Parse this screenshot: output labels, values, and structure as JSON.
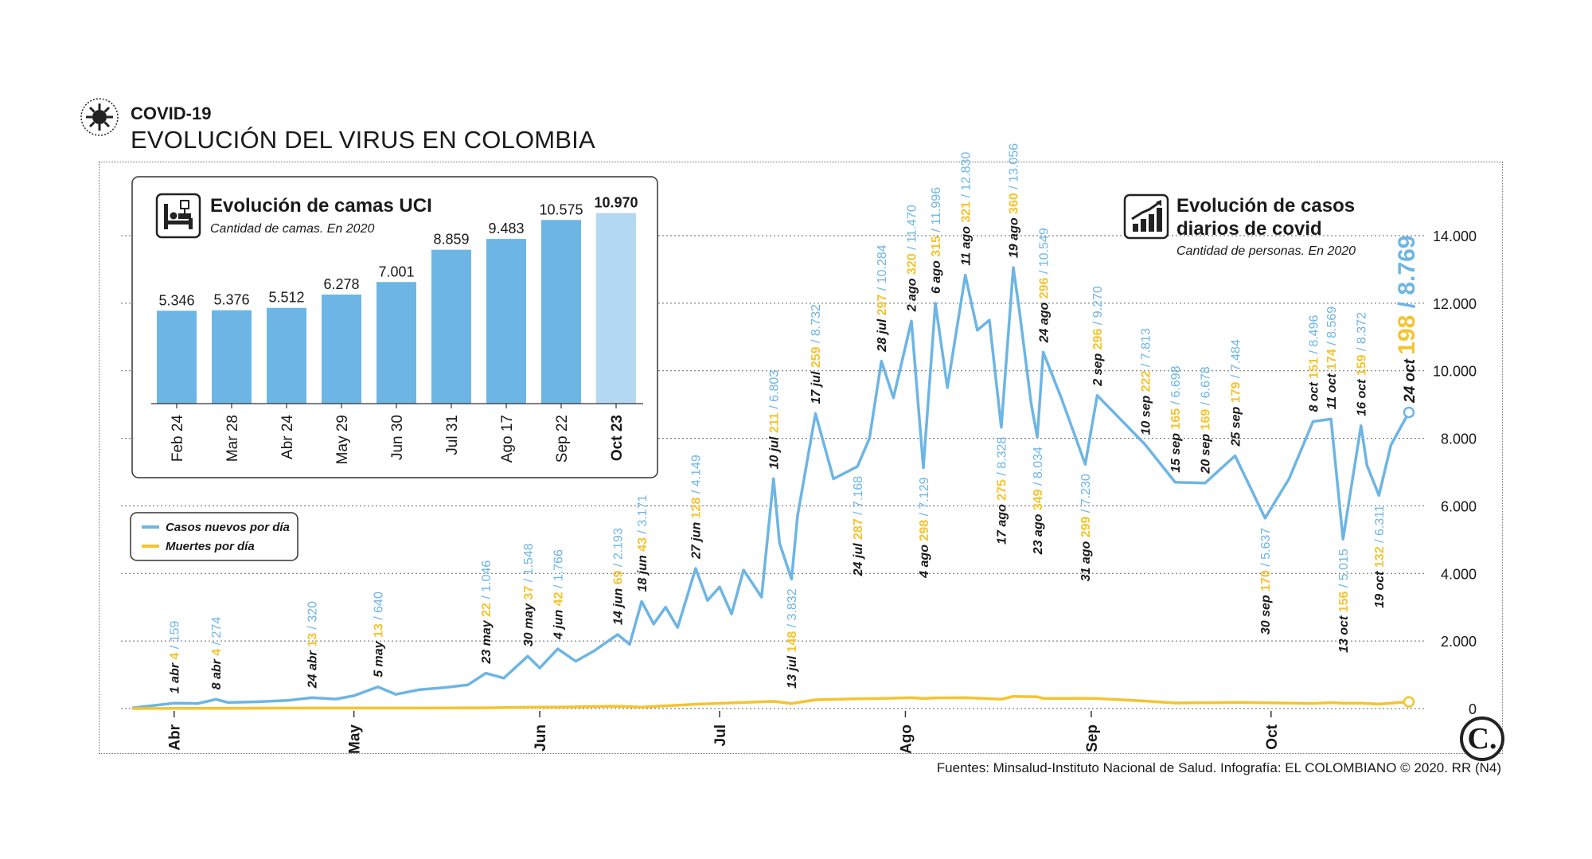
{
  "header": {
    "kicker": "COVID-19",
    "title": "EVOLUCIÓN DEL VIRUS EN COLOMBIA"
  },
  "sources": "Fuentes: Minsalud-Instituto Nacional de Salud. Infografía: EL COLOMBIANO © 2020. RR (N4)",
  "logo_text": "C.",
  "colors": {
    "cases": "#6db5e4",
    "deaths": "#f4c430",
    "bar": "#6db5e4",
    "bar_highlight": "#b3d8f2",
    "text": "#1a1a1a"
  },
  "chart_data": [
    {
      "type": "bar",
      "title": "Evolución de camas UCI",
      "subtitle": "Cantidad de camas. En 2020",
      "icon": "hospital-bed-icon",
      "categories": [
        "Feb 24",
        "Mar 28",
        "Abr 24",
        "May 29",
        "Jun 30",
        "Jul 31",
        "Ago 17",
        "Sep 22",
        "Oct 23"
      ],
      "values": [
        5346,
        5376,
        5512,
        6278,
        7001,
        8859,
        9483,
        10575,
        10970
      ],
      "value_labels": [
        "5.346",
        "5.376",
        "5.512",
        "6.278",
        "7.001",
        "8.859",
        "9.483",
        "10.575",
        "10.970"
      ],
      "highlight_index": 8
    },
    {
      "type": "line",
      "title": "Evolución de casos diarios de covid",
      "subtitle": "Cantidad de personas. En 2020",
      "icon": "chart-up-icon",
      "x_start": "2020-03-25",
      "x_end": "2020-10-24",
      "x_tick_labels": [
        {
          "date": "2020-04-01",
          "label": "Abr"
        },
        {
          "date": "2020-05-01",
          "label": "May"
        },
        {
          "date": "2020-06-01",
          "label": "Jun"
        },
        {
          "date": "2020-07-01",
          "label": "Jul"
        },
        {
          "date": "2020-08-01",
          "label": "Ago"
        },
        {
          "date": "2020-09-01",
          "label": "Sep"
        },
        {
          "date": "2020-10-01",
          "label": "Oct"
        }
      ],
      "ylim": [
        0,
        14000
      ],
      "y_ticks": [
        0,
        2000,
        4000,
        6000,
        8000,
        10000,
        12000,
        14000
      ],
      "y_tick_labels": [
        "0",
        "2.000",
        "4.000",
        "6.000",
        "8.000",
        "10.000",
        "12.000",
        "14.000"
      ],
      "grid": true,
      "legend_position": "left",
      "series": [
        {
          "name": "Casos nuevos por día",
          "points": [
            [
              "2020-03-25",
              20
            ],
            [
              "2020-04-01",
              159
            ],
            [
              "2020-04-05",
              150
            ],
            [
              "2020-04-08",
              274
            ],
            [
              "2020-04-10",
              180
            ],
            [
              "2020-04-15",
              200
            ],
            [
              "2020-04-20",
              240
            ],
            [
              "2020-04-24",
              320
            ],
            [
              "2020-04-28",
              280
            ],
            [
              "2020-05-01",
              380
            ],
            [
              "2020-05-05",
              640
            ],
            [
              "2020-05-08",
              420
            ],
            [
              "2020-05-12",
              560
            ],
            [
              "2020-05-16",
              620
            ],
            [
              "2020-05-20",
              700
            ],
            [
              "2020-05-23",
              1046
            ],
            [
              "2020-05-26",
              900
            ],
            [
              "2020-05-30",
              1548
            ],
            [
              "2020-06-01",
              1200
            ],
            [
              "2020-06-04",
              1766
            ],
            [
              "2020-06-07",
              1400
            ],
            [
              "2020-06-10",
              1700
            ],
            [
              "2020-06-14",
              2193
            ],
            [
              "2020-06-16",
              1900
            ],
            [
              "2020-06-18",
              3171
            ],
            [
              "2020-06-20",
              2500
            ],
            [
              "2020-06-22",
              3000
            ],
            [
              "2020-06-24",
              2400
            ],
            [
              "2020-06-27",
              4149
            ],
            [
              "2020-06-29",
              3200
            ],
            [
              "2020-07-01",
              3600
            ],
            [
              "2020-07-03",
              2800
            ],
            [
              "2020-07-05",
              4100
            ],
            [
              "2020-07-08",
              3300
            ],
            [
              "2020-07-10",
              6803
            ],
            [
              "2020-07-11",
              4900
            ],
            [
              "2020-07-13",
              3832
            ],
            [
              "2020-07-14",
              5700
            ],
            [
              "2020-07-17",
              8732
            ],
            [
              "2020-07-20",
              6800
            ],
            [
              "2020-07-24",
              7168
            ],
            [
              "2020-07-26",
              8000
            ],
            [
              "2020-07-28",
              10284
            ],
            [
              "2020-07-30",
              9200
            ],
            [
              "2020-08-02",
              11470
            ],
            [
              "2020-08-04",
              7129
            ],
            [
              "2020-08-06",
              11996
            ],
            [
              "2020-08-08",
              9500
            ],
            [
              "2020-08-11",
              12830
            ],
            [
              "2020-08-13",
              11200
            ],
            [
              "2020-08-15",
              11500
            ],
            [
              "2020-08-17",
              8328
            ],
            [
              "2020-08-19",
              13056
            ],
            [
              "2020-08-20",
              11800
            ],
            [
              "2020-08-22",
              9000
            ],
            [
              "2020-08-23",
              8034
            ],
            [
              "2020-08-24",
              10549
            ],
            [
              "2020-08-27",
              9200
            ],
            [
              "2020-08-31",
              7230
            ],
            [
              "2020-09-02",
              9270
            ],
            [
              "2020-09-10",
              7813
            ],
            [
              "2020-09-15",
              6698
            ],
            [
              "2020-09-20",
              6678
            ],
            [
              "2020-09-25",
              7484
            ],
            [
              "2020-09-30",
              5637
            ],
            [
              "2020-10-04",
              6800
            ],
            [
              "2020-10-08",
              8496
            ],
            [
              "2020-10-11",
              8569
            ],
            [
              "2020-10-13",
              5015
            ],
            [
              "2020-10-16",
              8372
            ],
            [
              "2020-10-17",
              7200
            ],
            [
              "2020-10-19",
              6311
            ],
            [
              "2020-10-21",
              7800
            ],
            [
              "2020-10-24",
              8769
            ]
          ]
        },
        {
          "name": "Muertes por día",
          "points": [
            [
              "2020-03-25",
              0
            ],
            [
              "2020-04-01",
              4
            ],
            [
              "2020-04-08",
              4
            ],
            [
              "2020-04-24",
              13
            ],
            [
              "2020-05-05",
              13
            ],
            [
              "2020-05-23",
              22
            ],
            [
              "2020-05-30",
              37
            ],
            [
              "2020-06-04",
              42
            ],
            [
              "2020-06-14",
              69
            ],
            [
              "2020-06-18",
              43
            ],
            [
              "2020-06-27",
              128
            ],
            [
              "2020-07-10",
              211
            ],
            [
              "2020-07-13",
              148
            ],
            [
              "2020-07-17",
              259
            ],
            [
              "2020-07-24",
              287
            ],
            [
              "2020-07-28",
              297
            ],
            [
              "2020-08-02",
              320
            ],
            [
              "2020-08-04",
              298
            ],
            [
              "2020-08-06",
              315
            ],
            [
              "2020-08-11",
              321
            ],
            [
              "2020-08-17",
              275
            ],
            [
              "2020-08-19",
              360
            ],
            [
              "2020-08-23",
              349
            ],
            [
              "2020-08-24",
              296
            ],
            [
              "2020-08-31",
              299
            ],
            [
              "2020-09-02",
              296
            ],
            [
              "2020-09-10",
              222
            ],
            [
              "2020-09-15",
              165
            ],
            [
              "2020-09-20",
              169
            ],
            [
              "2020-09-25",
              179
            ],
            [
              "2020-09-30",
              170
            ],
            [
              "2020-10-08",
              151
            ],
            [
              "2020-10-11",
              174
            ],
            [
              "2020-10-13",
              156
            ],
            [
              "2020-10-16",
              159
            ],
            [
              "2020-10-19",
              132
            ],
            [
              "2020-10-24",
              198
            ]
          ]
        }
      ],
      "annotations": [
        {
          "date": "2020-04-01",
          "label": "1 abr",
          "deaths": "4",
          "cases": "159",
          "side": "above"
        },
        {
          "date": "2020-04-08",
          "label": "8 abr",
          "deaths": "4",
          "cases": "274",
          "side": "above"
        },
        {
          "date": "2020-04-24",
          "label": "24 abr",
          "deaths": "13",
          "cases": "320",
          "side": "above"
        },
        {
          "date": "2020-05-05",
          "label": "5 may",
          "deaths": "13",
          "cases": "640",
          "side": "above"
        },
        {
          "date": "2020-05-23",
          "label": "23 may",
          "deaths": "22",
          "cases": "1.046",
          "side": "above"
        },
        {
          "date": "2020-05-30",
          "label": "30 may",
          "deaths": "37",
          "cases": "1.548",
          "side": "above"
        },
        {
          "date": "2020-06-04",
          "label": "4 jun",
          "deaths": "42",
          "cases": "1.766",
          "side": "above"
        },
        {
          "date": "2020-06-14",
          "label": "14 jun",
          "deaths": "69",
          "cases": "2.193",
          "side": "above"
        },
        {
          "date": "2020-06-18",
          "label": "18 jun",
          "deaths": "43",
          "cases": "3.171",
          "side": "above"
        },
        {
          "date": "2020-06-27",
          "label": "27 jun",
          "deaths": "128",
          "cases": "4.149",
          "side": "above"
        },
        {
          "date": "2020-07-10",
          "label": "10 jul",
          "deaths": "211",
          "cases": "6.803",
          "side": "above"
        },
        {
          "date": "2020-07-13",
          "label": "13 jul",
          "deaths": "148",
          "cases": "3.832",
          "side": "below"
        },
        {
          "date": "2020-07-17",
          "label": "17 jul",
          "deaths": "259",
          "cases": "8.732",
          "side": "above"
        },
        {
          "date": "2020-07-24",
          "label": "24 jul",
          "deaths": "287",
          "cases": "7.168",
          "side": "below"
        },
        {
          "date": "2020-07-28",
          "label": "28 jul",
          "deaths": "297",
          "cases": "10.284",
          "side": "above"
        },
        {
          "date": "2020-08-02",
          "label": "2 ago",
          "deaths": "320",
          "cases": "11.470",
          "side": "above"
        },
        {
          "date": "2020-08-04",
          "label": "4 ago",
          "deaths": "298",
          "cases": "7.129",
          "side": "below"
        },
        {
          "date": "2020-08-06",
          "label": "6 ago",
          "deaths": "315",
          "cases": "11.996",
          "side": "above"
        },
        {
          "date": "2020-08-11",
          "label": "11 ago",
          "deaths": "321",
          "cases": "12.830",
          "side": "above"
        },
        {
          "date": "2020-08-17",
          "label": "17 ago",
          "deaths": "275",
          "cases": "8.328",
          "side": "below"
        },
        {
          "date": "2020-08-19",
          "label": "19 ago",
          "deaths": "360",
          "cases": "13.056",
          "side": "above"
        },
        {
          "date": "2020-08-23",
          "label": "23 ago",
          "deaths": "349",
          "cases": "8.034",
          "side": "below"
        },
        {
          "date": "2020-08-24",
          "label": "24 ago",
          "deaths": "296",
          "cases": "10.549",
          "side": "above"
        },
        {
          "date": "2020-08-31",
          "label": "31 ago",
          "deaths": "299",
          "cases": "7.230",
          "side": "below"
        },
        {
          "date": "2020-09-02",
          "label": "2 sep",
          "deaths": "296",
          "cases": "9.270",
          "side": "above"
        },
        {
          "date": "2020-09-10",
          "label": "10 sep",
          "deaths": "222",
          "cases": "7.813",
          "side": "above"
        },
        {
          "date": "2020-09-15",
          "label": "15 sep",
          "deaths": "165",
          "cases": "6.698",
          "side": "above"
        },
        {
          "date": "2020-09-20",
          "label": "20 sep",
          "deaths": "169",
          "cases": "6.678",
          "side": "above"
        },
        {
          "date": "2020-09-25",
          "label": "25 sep",
          "deaths": "179",
          "cases": "7.484",
          "side": "above"
        },
        {
          "date": "2020-09-30",
          "label": "30 sep",
          "deaths": "170",
          "cases": "5.637",
          "side": "below"
        },
        {
          "date": "2020-10-08",
          "label": "8 oct",
          "deaths": "151",
          "cases": "8.496",
          "side": "above"
        },
        {
          "date": "2020-10-11",
          "label": "11 oct",
          "deaths": "174",
          "cases": "8.569",
          "side": "above"
        },
        {
          "date": "2020-10-13",
          "label": "13 oct",
          "deaths": "156",
          "cases": "5.015",
          "side": "below"
        },
        {
          "date": "2020-10-16",
          "label": "16 oct",
          "deaths": "159",
          "cases": "8.372",
          "side": "above"
        },
        {
          "date": "2020-10-19",
          "label": "19 oct",
          "deaths": "132",
          "cases": "6.311",
          "side": "below"
        },
        {
          "date": "2020-10-24",
          "label": "24 oct",
          "deaths": "198",
          "cases": "8.769",
          "side": "above",
          "emphasis": true
        }
      ]
    }
  ]
}
